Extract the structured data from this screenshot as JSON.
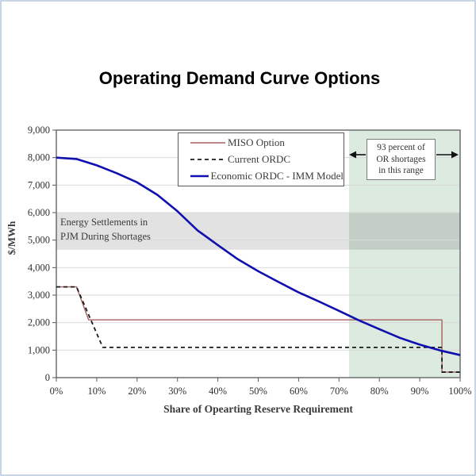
{
  "title": "Operating Demand Curve Options",
  "chart_data": {
    "type": "line",
    "title": "Operating Demand Curve Options",
    "xlabel": "Share of Opearting Reserve Requirement",
    "ylabel": "$/MWh",
    "xlim": [
      0,
      100
    ],
    "ylim": [
      0,
      9000
    ],
    "grid": "horizontal",
    "x_tick_labels": [
      "0%",
      "10%",
      "20%",
      "30%",
      "40%",
      "50%",
      "60%",
      "70%",
      "80%",
      "90%",
      "100%"
    ],
    "y_tick_labels": [
      "0",
      "1,000",
      "2,000",
      "3,000",
      "4,000",
      "5,000",
      "6,000",
      "7,000",
      "8,000",
      "9,000"
    ],
    "legend_position": "top-center",
    "series": [
      {
        "name": "MISO Option",
        "color": "#A86060",
        "width": 1.4,
        "dash": null,
        "points": [
          [
            0,
            3300
          ],
          [
            5,
            3300
          ],
          [
            8,
            2100
          ],
          [
            95.5,
            2100
          ],
          [
            95.5,
            200
          ],
          [
            100,
            200
          ]
        ]
      },
      {
        "name": "Current ORDC",
        "color": "#1a1a1a",
        "width": 1.8,
        "dash": "5,4",
        "points": [
          [
            0,
            3300
          ],
          [
            5,
            3300
          ],
          [
            11.5,
            1100
          ],
          [
            95.5,
            1100
          ],
          [
            95.5,
            200
          ],
          [
            100,
            200
          ]
        ]
      },
      {
        "name": "Economic ORDC - IMM Model",
        "color": "#1010B0",
        "width": 2.6,
        "dash": null,
        "points": [
          [
            0,
            8000
          ],
          [
            5,
            7950
          ],
          [
            10,
            7720
          ],
          [
            15,
            7430
          ],
          [
            20,
            7100
          ],
          [
            25,
            6650
          ],
          [
            30,
            6050
          ],
          [
            35,
            5350
          ],
          [
            40,
            4820
          ],
          [
            45,
            4300
          ],
          [
            50,
            3870
          ],
          [
            55,
            3480
          ],
          [
            60,
            3100
          ],
          [
            65,
            2770
          ],
          [
            70,
            2430
          ],
          [
            75,
            2080
          ],
          [
            80,
            1760
          ],
          [
            85,
            1450
          ],
          [
            90,
            1200
          ],
          [
            95,
            990
          ],
          [
            100,
            820
          ]
        ]
      }
    ],
    "regions": {
      "shortage_range": {
        "x0": 72.5,
        "x1": 100,
        "color": "#DCEAE0",
        "label_lines": [
          "93 percent of",
          "OR shortages",
          "in this range"
        ]
      },
      "energy_settlements_band": {
        "y0": 4650,
        "y1": 6000,
        "color": "rgba(0,0,0,0.115)",
        "label_lines": [
          "Energy Settlements in",
          "PJM During Shortages"
        ]
      }
    }
  }
}
